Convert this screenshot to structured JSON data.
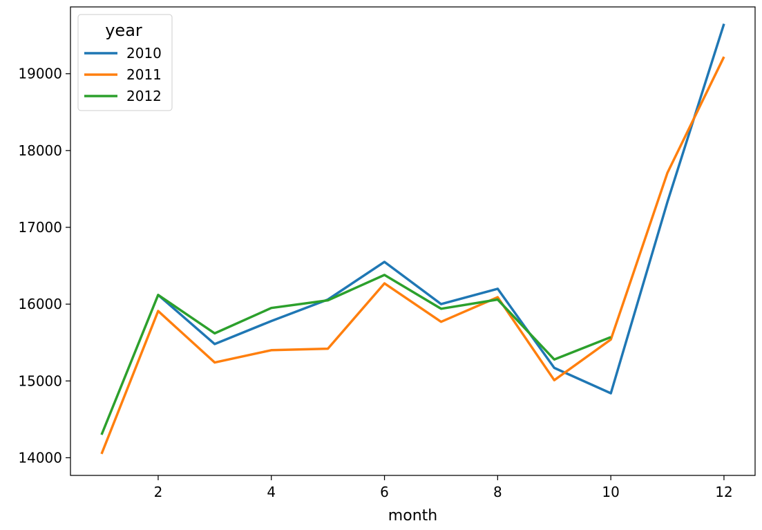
{
  "chart_data": {
    "type": "line",
    "title": "",
    "xlabel": "month",
    "ylabel": "",
    "x": [
      1,
      2,
      3,
      4,
      5,
      6,
      7,
      8,
      9,
      10,
      11,
      12
    ],
    "xlim": [
      0.45,
      12.55
    ],
    "ylim": [
      13770,
      19870
    ],
    "xticks": [
      2,
      4,
      6,
      8,
      10,
      12
    ],
    "yticks": [
      14000,
      15000,
      16000,
      17000,
      18000,
      19000
    ],
    "grid": false,
    "legend": {
      "title": "year",
      "placement": "top-left"
    },
    "series": [
      {
        "name": "2010",
        "color": "#1f77b4",
        "values": [
          null,
          16120,
          15480,
          15780,
          16060,
          16550,
          16000,
          16200,
          15170,
          14840,
          17330,
          19650
        ]
      },
      {
        "name": "2011",
        "color": "#ff7f0e",
        "values": [
          14050,
          15910,
          15240,
          15400,
          15420,
          16270,
          15770,
          16090,
          15010,
          15540,
          17710,
          19220
        ]
      },
      {
        "name": "2012",
        "color": "#2ca02c",
        "values": [
          14300,
          16120,
          15620,
          15950,
          16050,
          16380,
          15940,
          16060,
          15280,
          15570,
          null,
          null
        ]
      }
    ]
  }
}
